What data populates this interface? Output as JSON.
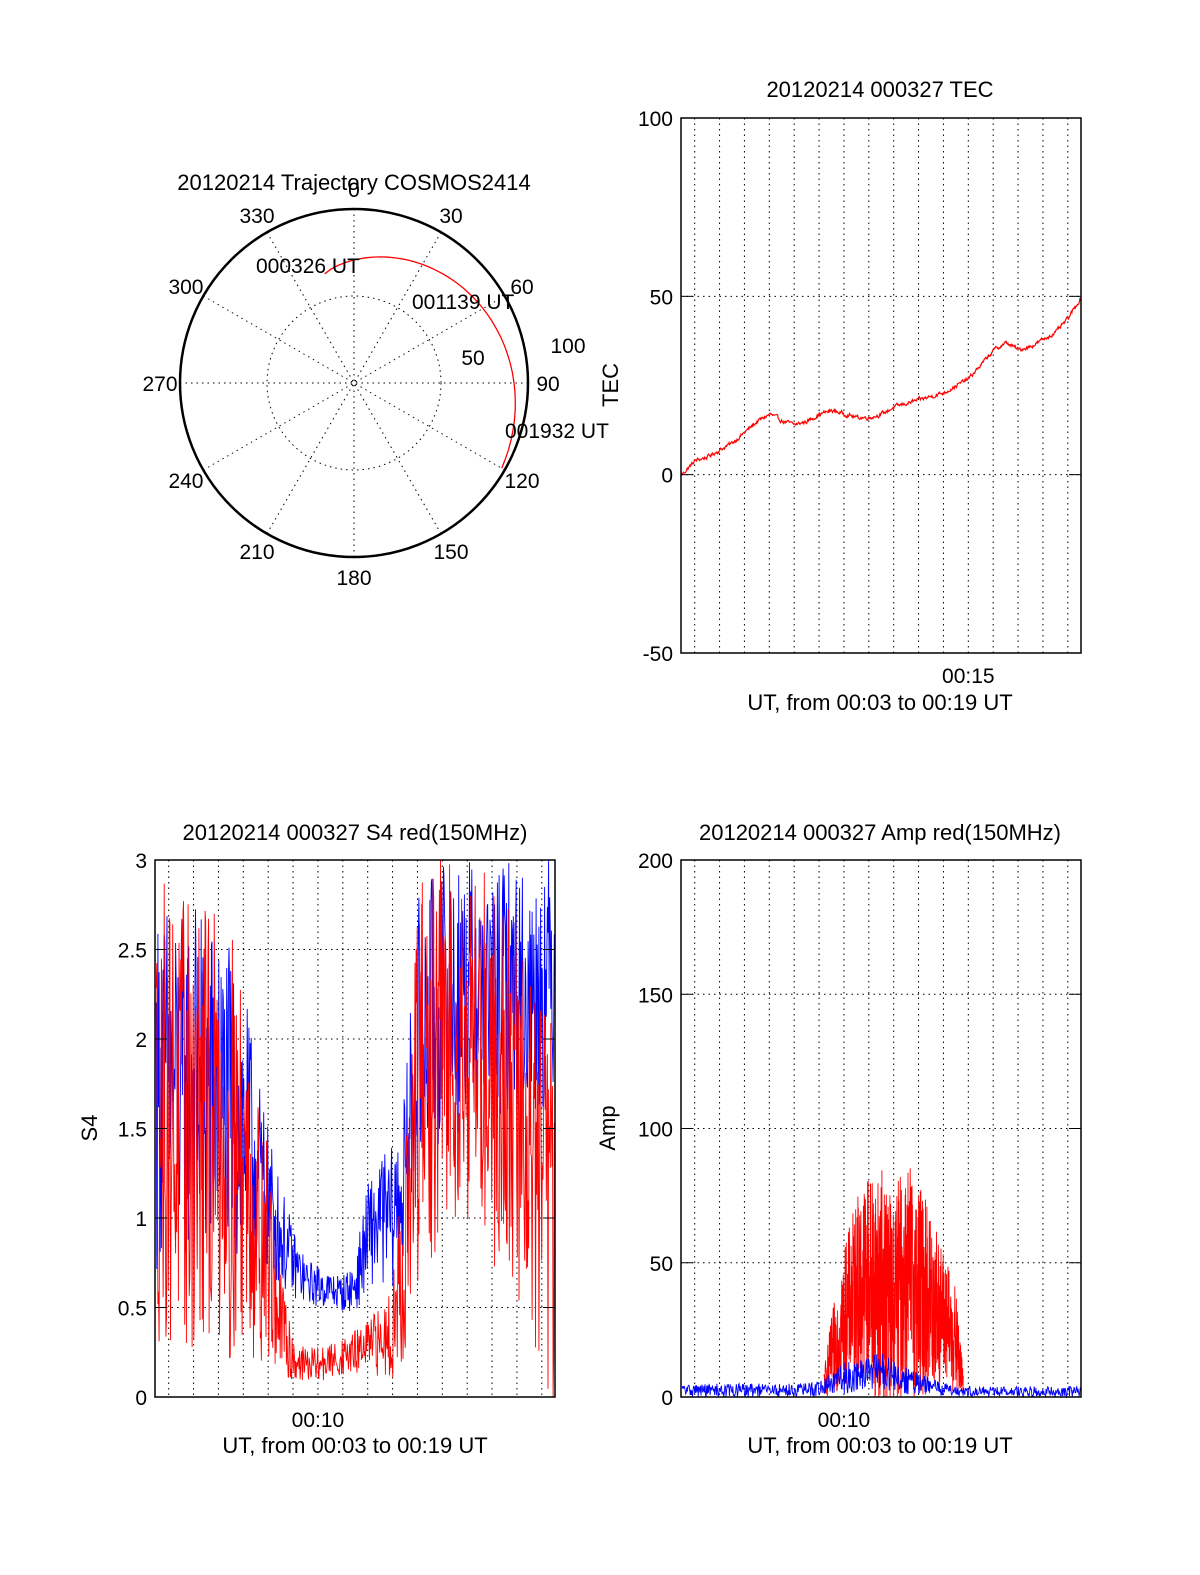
{
  "colors": {
    "red": "#ff0000",
    "blue": "#0000ff",
    "axis": "#000000"
  },
  "trajectory": {
    "title": "20120214 Trajectory COSMOS2414",
    "azimuth_labels": [
      "0",
      "30",
      "60",
      "90",
      "120",
      "150",
      "180",
      "210",
      "240",
      "270",
      "300",
      "330"
    ],
    "elevation_labels": [
      "50",
      "100"
    ],
    "start_label": "000326 UT",
    "mid_label": "001139 UT",
    "end_label": "001932 UT",
    "track_color": "red",
    "track_start_deg": 345,
    "track_end_deg": 120,
    "track_start_radius_frac": 0.65,
    "track_end_radius_frac": 0.98
  },
  "chart_data": [
    {
      "id": "tec",
      "type": "line",
      "title": "20120214 000327 TEC",
      "ylabel": "TEC",
      "xlabel": "UT, from 00:03 to 00:19 UT",
      "ylim": [
        -50,
        100
      ],
      "yticks": [
        "-50",
        "0",
        "50",
        "100"
      ],
      "xtick_labels": [
        "00:15"
      ],
      "xlim_minutes": [
        3.45,
        19.53
      ],
      "xtick_positions_minutes": [
        15
      ],
      "grid": true,
      "series": [
        {
          "color": "red",
          "x": [
            3.45,
            4.0,
            4.5,
            5.0,
            5.5,
            6.0,
            6.5,
            7.0,
            7.5,
            8.0,
            8.5,
            9.0,
            9.5,
            10.0,
            10.5,
            11.0,
            11.5,
            12.0,
            12.5,
            13.0,
            13.5,
            14.0,
            14.5,
            15.0,
            15.5,
            16.0,
            16.5,
            17.0,
            17.5,
            18.0,
            18.5,
            19.0,
            19.53
          ],
          "y": [
            0,
            4,
            5,
            7,
            9,
            12,
            15,
            17,
            15,
            14,
            15,
            17,
            18,
            17,
            16,
            16,
            17,
            19,
            20,
            21,
            22,
            23,
            25,
            27,
            31,
            35,
            37,
            35,
            36,
            38,
            40,
            44,
            50
          ]
        }
      ]
    },
    {
      "id": "s4",
      "type": "line",
      "title": "20120214 000327 S4 red(150MHz)",
      "ylabel": "S4",
      "xlabel": "UT, from 00:03 to 00:19 UT",
      "ylim": [
        0,
        3
      ],
      "yticks": [
        "0",
        "0.5",
        "1",
        "1.5",
        "2",
        "2.5",
        "3"
      ],
      "xtick_labels": [
        "00:10"
      ],
      "xlim_minutes": [
        3.45,
        19.53
      ],
      "xtick_positions_minutes": [
        10
      ],
      "grid": true,
      "series": [
        {
          "color": "blue",
          "x": [
            3.5,
            4.0,
            4.5,
            5.0,
            5.5,
            6.0,
            6.5,
            7.0,
            7.5,
            8.0,
            8.5,
            9.0,
            9.5,
            10.0,
            10.5,
            11.0,
            11.5,
            12.0,
            12.5,
            13.0,
            13.5,
            14.0,
            14.5,
            15.0,
            15.5,
            16.0,
            16.5,
            17.0,
            17.5,
            18.0,
            18.5,
            19.0,
            19.5
          ],
          "y": [
            1.7,
            1.8,
            1.7,
            1.8,
            1.7,
            1.7,
            1.6,
            1.5,
            1.3,
            1.1,
            0.9,
            0.75,
            0.65,
            0.62,
            0.6,
            0.58,
            0.62,
            0.9,
            1.0,
            1.0,
            1.2,
            2.0,
            2.1,
            2.2,
            2.2,
            2.3,
            2.3,
            2.2,
            2.3,
            2.3,
            2.2,
            2.3,
            2.4
          ],
          "spread": [
            1.0,
            1.0,
            1.0,
            1.0,
            1.0,
            0.9,
            0.9,
            0.8,
            0.6,
            0.4,
            0.3,
            0.2,
            0.12,
            0.12,
            0.1,
            0.1,
            0.15,
            0.3,
            0.35,
            0.4,
            0.5,
            0.8,
            0.8,
            0.8,
            0.8,
            0.7,
            0.7,
            0.7,
            0.7,
            0.7,
            0.7,
            0.7,
            0.7
          ]
        },
        {
          "color": "red",
          "x": [
            3.5,
            4.0,
            4.5,
            5.0,
            5.5,
            6.0,
            6.5,
            7.0,
            7.5,
            8.0,
            8.5,
            9.0,
            9.5,
            10.0,
            10.5,
            11.0,
            11.5,
            12.0,
            12.5,
            13.0,
            13.5,
            14.0,
            14.5,
            15.0,
            15.5,
            16.0,
            16.5,
            17.0,
            17.5,
            18.0,
            18.5,
            19.0,
            19.5
          ],
          "y": [
            1.6,
            1.6,
            1.5,
            1.5,
            1.5,
            1.5,
            1.4,
            1.3,
            1.0,
            0.8,
            0.4,
            0.22,
            0.18,
            0.18,
            0.2,
            0.22,
            0.25,
            0.28,
            0.3,
            0.4,
            0.8,
            1.6,
            1.8,
            2.0,
            2.0,
            2.0,
            2.0,
            1.8,
            1.8,
            1.6,
            1.4,
            1.2,
            1.0
          ],
          "spread": [
            1.3,
            1.3,
            1.3,
            1.3,
            1.3,
            1.2,
            1.2,
            1.0,
            0.8,
            0.6,
            0.3,
            0.15,
            0.1,
            0.1,
            0.1,
            0.1,
            0.12,
            0.15,
            0.2,
            0.3,
            0.6,
            1.2,
            1.2,
            1.1,
            1.0,
            1.0,
            1.0,
            1.1,
            1.1,
            1.1,
            1.1,
            1.1,
            1.1
          ]
        }
      ]
    },
    {
      "id": "amp",
      "type": "line",
      "title": "20120214 000327 Amp red(150MHz)",
      "ylabel": "Amp",
      "xlabel": "UT, from 00:03 to 00:19 UT",
      "ylim": [
        0,
        200
      ],
      "yticks": [
        "0",
        "50",
        "100",
        "150",
        "200"
      ],
      "xtick_labels": [
        "00:10"
      ],
      "xlim_minutes": [
        3.45,
        19.53
      ],
      "xtick_positions_minutes": [
        10
      ],
      "grid": true,
      "series": [
        {
          "color": "red",
          "x": [
            9.2,
            9.5,
            10.0,
            10.5,
            11.0,
            11.5,
            12.0,
            12.5,
            13.0,
            13.5,
            14.0,
            14.5,
            14.8
          ],
          "y": [
            5,
            15,
            30,
            40,
            45,
            40,
            35,
            45,
            40,
            35,
            30,
            20,
            5
          ],
          "spread": [
            5,
            15,
            25,
            35,
            40,
            45,
            40,
            45,
            40,
            35,
            25,
            20,
            5
          ]
        },
        {
          "color": "blue",
          "x": [
            3.5,
            4.0,
            5.0,
            6.0,
            7.0,
            8.0,
            9.0,
            9.5,
            10.0,
            10.5,
            11.0,
            11.5,
            12.0,
            12.5,
            13.0,
            13.5,
            14.0,
            14.5,
            15.0,
            16.0,
            17.0,
            18.0,
            19.0,
            19.5
          ],
          "y": [
            2.5,
            2.5,
            2.5,
            2.5,
            2.5,
            2.5,
            3,
            5,
            7,
            8,
            9,
            10,
            8,
            6,
            5,
            4,
            3,
            2.5,
            2,
            2,
            2,
            2,
            2,
            2
          ],
          "spread": [
            2.5,
            2.5,
            2.5,
            2.5,
            2.5,
            2.5,
            3,
            4,
            6,
            6,
            6,
            7,
            6,
            5,
            4,
            3,
            2.5,
            2,
            2,
            2,
            2,
            2,
            2,
            2
          ]
        }
      ]
    }
  ]
}
